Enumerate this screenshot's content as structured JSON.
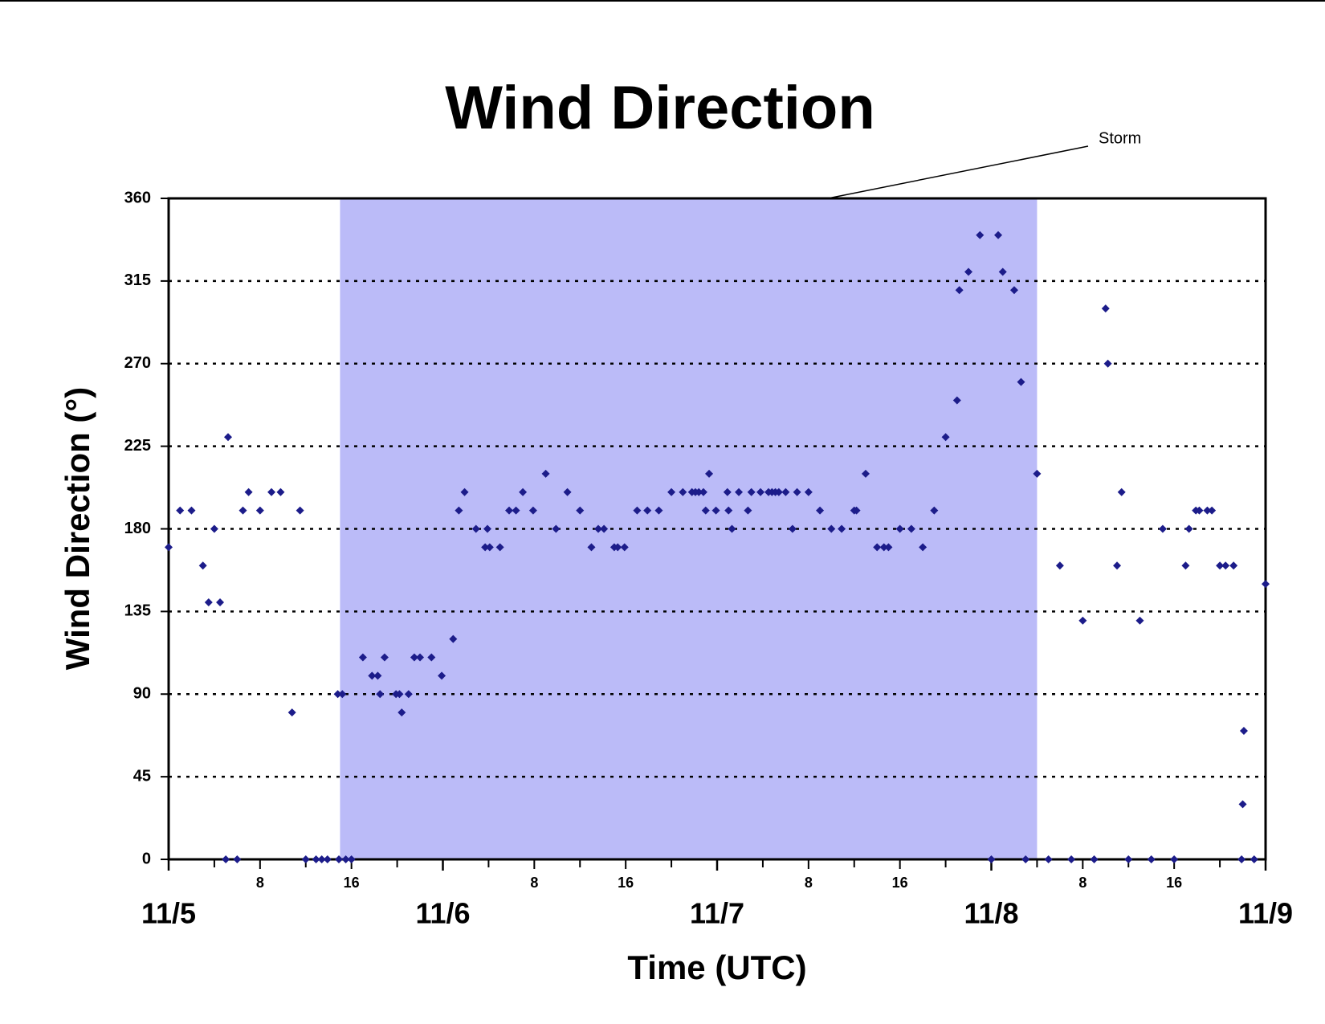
{
  "chart_data": {
    "type": "scatter",
    "title": "Wind Direction",
    "ylabel": "Wind Direction (°)",
    "xlabel": "Time (UTC)",
    "x": [
      0,
      1,
      2,
      3,
      3.5,
      4,
      4.5,
      5,
      5.2,
      6,
      6.5,
      7,
      8,
      9,
      9.8,
      10.8,
      11.5,
      12,
      12.9,
      13.4,
      13.9,
      14.8,
      14.9,
      15.2,
      15.5,
      16,
      17,
      17.8,
      18.3,
      18.5,
      18.9,
      19.9,
      20.2,
      20.4,
      21,
      21.5,
      22,
      23,
      23.9,
      24.9,
      25.4,
      25.9,
      26.9,
      27.7,
      27.9,
      28.1,
      29,
      29.8,
      30.4,
      31,
      31.9,
      33,
      33.9,
      34.9,
      36,
      37,
      37.6,
      38.1,
      39,
      39.3,
      39.9,
      41,
      41.9,
      42.9,
      44,
      45,
      45.8,
      46.1,
      46.4,
      46.8,
      47,
      47.3,
      47.9,
      48.9,
      49,
      49.3,
      49.9,
      50.7,
      51,
      51.8,
      52.5,
      52.8,
      53.1,
      53.4,
      54,
      54.6,
      55,
      56,
      57,
      58,
      58.9,
      60,
      60.2,
      61,
      62,
      62.6,
      63,
      64,
      65,
      66,
      67,
      68,
      69,
      69.2,
      70,
      71,
      72,
      72.6,
      73,
      74,
      74.6,
      75,
      76,
      77,
      78,
      79,
      80,
      81,
      82,
      82.2,
      83,
      83.4,
      84,
      85,
      86,
      87,
      88,
      89,
      89.3,
      89.9,
      90.2,
      90.9,
      91.3,
      92,
      92.5,
      93.2,
      93.9,
      94,
      94.1,
      95,
      96
    ],
    "series": [
      {
        "name": "Wind Direction",
        "color": "#1c1c8a",
        "values": [
          170,
          190,
          190,
          160,
          140,
          180,
          140,
          0,
          230,
          0,
          190,
          200,
          190,
          200,
          200,
          80,
          190,
          0,
          0,
          0,
          0,
          90,
          0,
          90,
          0,
          0,
          110,
          100,
          100,
          90,
          110,
          90,
          90,
          80,
          90,
          110,
          110,
          110,
          100,
          120,
          190,
          200,
          180,
          170,
          180,
          170,
          170,
          190,
          190,
          200,
          190,
          210,
          180,
          200,
          190,
          170,
          180,
          180,
          170,
          170,
          170,
          190,
          190,
          190,
          200,
          200,
          200,
          200,
          200,
          200,
          190,
          210,
          190,
          200,
          190,
          180,
          200,
          190,
          200,
          200,
          200,
          200,
          200,
          200,
          200,
          180,
          200,
          200,
          190,
          180,
          180,
          190,
          190,
          210,
          170,
          170,
          170,
          180,
          180,
          170,
          190,
          230,
          250,
          310,
          320,
          340,
          0,
          340,
          320,
          310,
          260,
          0,
          210,
          0,
          160,
          0,
          130,
          0,
          300,
          270,
          160,
          200,
          0,
          130,
          0,
          180,
          0,
          160,
          180,
          190,
          190,
          190,
          190,
          160,
          160,
          160,
          0,
          30,
          70,
          0,
          150
        ]
      }
    ],
    "xlim": [
      0,
      96
    ],
    "ylim": [
      0,
      360
    ],
    "yticks": [
      0,
      45,
      90,
      135,
      180,
      225,
      270,
      315,
      360
    ],
    "grid": true,
    "xticks": [
      8,
      16,
      {
        "value": 32,
        "label": "8"
      },
      {
        "value": 40,
        "label": "16"
      },
      {
        "value": 56,
        "label": "8"
      },
      {
        "value": 64,
        "label": "16"
      },
      {
        "value": 80,
        "label": "8"
      },
      {
        "value": 88,
        "label": "16"
      }
    ],
    "date_ticks": [
      {
        "value": 0,
        "label": "11/5"
      },
      {
        "value": 24,
        "label": "11/6"
      },
      {
        "value": 48,
        "label": "11/7"
      },
      {
        "value": 72,
        "label": "11/8"
      },
      {
        "value": 96,
        "label": "11/9"
      }
    ],
    "minor_xticks": [
      4,
      12,
      20,
      28,
      36,
      44,
      52,
      60,
      68,
      76,
      84,
      92
    ],
    "shaded_region": {
      "x": [
        15,
        76
      ],
      "label": "Storm",
      "color": "#bbbbf8"
    }
  }
}
